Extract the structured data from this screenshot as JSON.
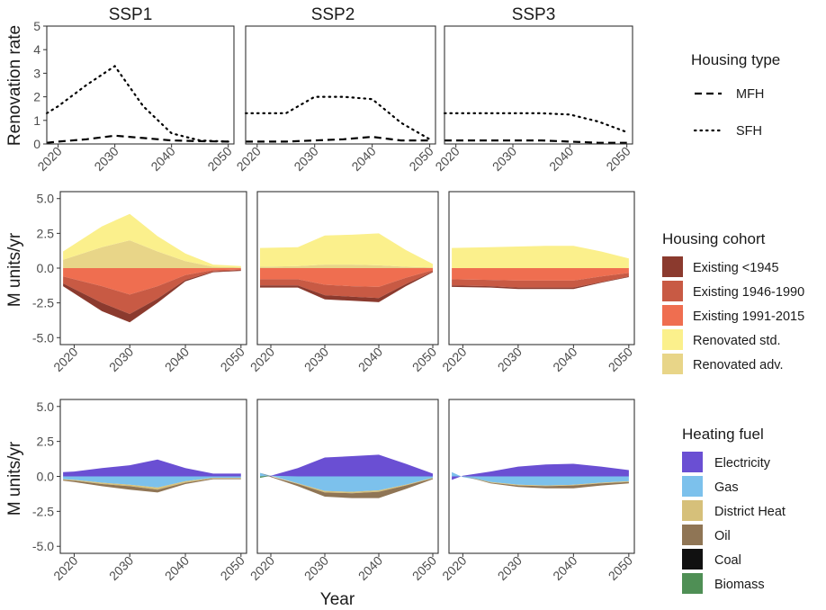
{
  "figure": {
    "facets": [
      "SSP1",
      "SSP2",
      "SSP3"
    ],
    "xlabel": "Year"
  },
  "legends": {
    "housing_type": {
      "title": "Housing type",
      "items": [
        {
          "label": "MFH",
          "style": "dashed"
        },
        {
          "label": "SFH",
          "style": "dotted"
        }
      ]
    },
    "housing_cohort": {
      "title": "Housing cohort",
      "items": [
        {
          "label": "Existing <1945",
          "color": "#8b3a2e"
        },
        {
          "label": "Existing 1946-1990",
          "color": "#c85a44"
        },
        {
          "label": "Existing 1991-2015",
          "color": "#ef6e50"
        },
        {
          "label": "Renovated std.",
          "color": "#fbf08c"
        },
        {
          "label": "Renovated adv.",
          "color": "#e8d588"
        }
      ]
    },
    "heating_fuel": {
      "title": "Heating fuel",
      "items": [
        {
          "label": "Electricity",
          "color": "#6a4fd3"
        },
        {
          "label": "Gas",
          "color": "#7cc1ec"
        },
        {
          "label": "District Heat",
          "color": "#d6c07a"
        },
        {
          "label": "Oil",
          "color": "#8f7555"
        },
        {
          "label": "Coal",
          "color": "#111111"
        },
        {
          "label": "Biomass",
          "color": "#4f8f55"
        }
      ]
    }
  },
  "chart_data": [
    {
      "type": "line",
      "panel_row": "renovation_rate",
      "ylabel": "Renovation rate",
      "ylim": [
        0,
        5
      ],
      "yticks": [
        0,
        1,
        2,
        3,
        4,
        5
      ],
      "xticks": [
        2020,
        2030,
        2040,
        2050
      ],
      "x": [
        2018,
        2020,
        2025,
        2030,
        2035,
        2040,
        2045,
        2050
      ],
      "facets": {
        "SSP1": {
          "MFH": [
            0.05,
            0.1,
            0.2,
            0.35,
            0.25,
            0.15,
            0.12,
            0.1
          ],
          "SFH": [
            1.3,
            1.6,
            2.5,
            3.3,
            1.6,
            0.45,
            0.15,
            0.1
          ]
        },
        "SSP2": {
          "MFH": [
            0.1,
            0.1,
            0.1,
            0.15,
            0.2,
            0.3,
            0.15,
            0.15
          ],
          "SFH": [
            1.3,
            1.3,
            1.3,
            2.0,
            2.0,
            1.9,
            0.9,
            0.2
          ]
        },
        "SSP3": {
          "MFH": [
            0.15,
            0.15,
            0.15,
            0.15,
            0.15,
            0.1,
            0.05,
            0.05
          ],
          "SFH": [
            1.3,
            1.3,
            1.3,
            1.3,
            1.3,
            1.25,
            0.95,
            0.5
          ]
        }
      }
    },
    {
      "type": "area",
      "panel_row": "housing_cohort",
      "ylabel": "M units/yr",
      "ylim": [
        -5.5,
        5.5
      ],
      "yticks": [
        -5.0,
        -2.5,
        0.0,
        2.5,
        5.0
      ],
      "xticks": [
        2020,
        2030,
        2040,
        2050
      ],
      "x": [
        2018,
        2025,
        2030,
        2035,
        2040,
        2045,
        2050
      ],
      "series_names": [
        "Renovated adv.",
        "Renovated std.",
        "Existing 1991-2015",
        "Existing 1946-1990",
        "Existing <1945"
      ],
      "facets": {
        "SSP1": {
          "Renovated adv.": [
            0.6,
            1.5,
            2.0,
            1.2,
            0.5,
            0.1,
            0.05
          ],
          "Renovated std.": [
            0.6,
            1.5,
            1.9,
            1.1,
            0.55,
            0.15,
            0.1
          ],
          "Existing 1991-2015": [
            -0.6,
            -1.3,
            -1.9,
            -1.3,
            -0.5,
            -0.15,
            -0.1
          ],
          "Existing 1946-1990": [
            -0.5,
            -1.2,
            -1.4,
            -0.9,
            -0.35,
            -0.1,
            -0.05
          ],
          "Existing <1945": [
            -0.2,
            -0.6,
            -0.6,
            -0.3,
            -0.1,
            -0.05,
            -0.05
          ]
        },
        "SSP2": {
          "Renovated adv.": [
            0.1,
            0.15,
            0.25,
            0.25,
            0.2,
            0.1,
            0.05
          ],
          "Renovated std.": [
            1.35,
            1.35,
            2.1,
            2.15,
            2.3,
            1.2,
            0.25
          ],
          "Existing 1991-2015": [
            -0.8,
            -0.8,
            -1.2,
            -1.3,
            -1.35,
            -0.7,
            -0.15
          ],
          "Existing 1946-1990": [
            -0.45,
            -0.45,
            -0.75,
            -0.75,
            -0.8,
            -0.45,
            -0.1
          ],
          "Existing <1945": [
            -0.15,
            -0.15,
            -0.3,
            -0.3,
            -0.3,
            -0.15,
            -0.05
          ]
        },
        "SSP3": {
          "Renovated adv.": [
            0.0,
            0.0,
            0.0,
            0.0,
            0.0,
            0.0,
            0.0
          ],
          "Renovated std.": [
            1.45,
            1.5,
            1.55,
            1.6,
            1.6,
            1.2,
            0.7
          ],
          "Existing 1991-2015": [
            -0.8,
            -0.85,
            -0.9,
            -0.9,
            -0.9,
            -0.6,
            -0.35
          ],
          "Existing 1946-1990": [
            -0.45,
            -0.45,
            -0.5,
            -0.5,
            -0.5,
            -0.4,
            -0.25
          ],
          "Existing <1945": [
            -0.1,
            -0.1,
            -0.1,
            -0.1,
            -0.1,
            -0.05,
            -0.05
          ]
        }
      }
    },
    {
      "type": "area",
      "panel_row": "heating_fuel",
      "ylabel": "M units/yr",
      "ylim": [
        -5.5,
        5.5
      ],
      "yticks": [
        -5.0,
        -2.5,
        0.0,
        2.5,
        5.0
      ],
      "xticks": [
        2020,
        2030,
        2040,
        2050
      ],
      "x": [
        2018,
        2020,
        2025,
        2030,
        2035,
        2040,
        2045,
        2050
      ],
      "series_names": [
        "Electricity",
        "Gas",
        "District Heat",
        "Oil",
        "Biomass"
      ],
      "facets": {
        "SSP1": {
          "Electricity": [
            0.3,
            0.35,
            0.6,
            0.8,
            1.2,
            0.6,
            0.2,
            0.2
          ],
          "Gas": [
            -0.2,
            -0.25,
            -0.45,
            -0.6,
            -0.8,
            -0.35,
            -0.1,
            -0.1
          ],
          "District Heat": [
            -0.05,
            -0.05,
            -0.1,
            -0.1,
            -0.15,
            -0.1,
            -0.05,
            -0.05
          ],
          "Oil": [
            -0.05,
            -0.1,
            -0.15,
            -0.25,
            -0.2,
            -0.1,
            -0.05,
            -0.05
          ],
          "Biomass": [
            0.0,
            0.0,
            0.0,
            0.0,
            0.0,
            0.0,
            0.0,
            0.0
          ]
        },
        "SSP2": {
          "Electricity": [
            0.0,
            0.05,
            0.6,
            1.35,
            1.45,
            1.55,
            0.9,
            0.2
          ],
          "Gas": [
            0.25,
            0.0,
            -0.5,
            -1.05,
            -1.1,
            -1.0,
            -0.6,
            -0.1
          ],
          "District Heat": [
            0.0,
            0.0,
            -0.05,
            -0.1,
            -0.1,
            -0.1,
            -0.05,
            -0.05
          ],
          "Oil": [
            0.0,
            -0.05,
            -0.15,
            -0.3,
            -0.35,
            -0.45,
            -0.25,
            -0.05
          ],
          "Biomass": [
            -0.1,
            0.0,
            0.0,
            0.0,
            0.0,
            0.0,
            0.0,
            0.0
          ]
        },
        "SSP3": {
          "Electricity": [
            -0.25,
            0.05,
            0.35,
            0.7,
            0.85,
            0.9,
            0.7,
            0.45
          ],
          "Gas": [
            0.3,
            -0.05,
            -0.4,
            -0.6,
            -0.65,
            -0.6,
            -0.45,
            -0.35
          ],
          "District Heat": [
            0.0,
            0.0,
            -0.05,
            -0.05,
            -0.05,
            -0.05,
            -0.05,
            -0.05
          ],
          "Oil": [
            0.0,
            0.0,
            -0.05,
            -0.1,
            -0.15,
            -0.2,
            -0.15,
            -0.1
          ],
          "Biomass": [
            0.0,
            0.0,
            0.0,
            0.0,
            0.0,
            0.0,
            0.0,
            0.0
          ]
        }
      }
    }
  ]
}
